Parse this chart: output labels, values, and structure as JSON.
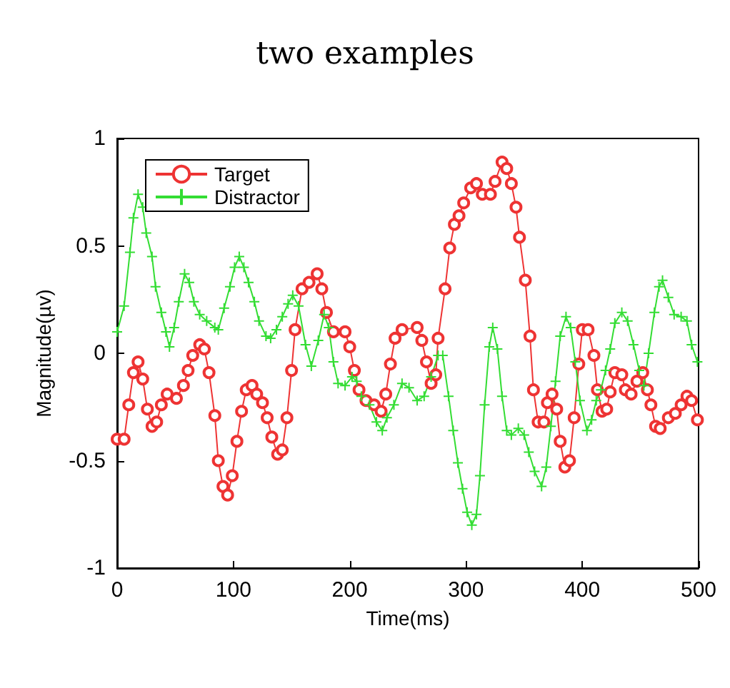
{
  "chart_data": {
    "type": "line",
    "title": "two examples",
    "xlabel": "Time(ms)",
    "ylabel": "Magnitude(µv)",
    "xlim": [
      0,
      500
    ],
    "xticks": [
      0,
      100,
      200,
      300,
      400,
      500
    ],
    "ylim": [
      -1,
      1
    ],
    "yticks": [
      -1,
      -0.5,
      0,
      0.5,
      1
    ],
    "legend": "top left",
    "series": [
      {
        "name": "Target",
        "color": "#ee3333",
        "marker": "circle",
        "x": [
          0,
          6,
          10,
          14,
          18,
          22,
          26,
          30,
          34,
          38,
          43,
          51,
          57,
          61,
          65,
          71,
          75,
          79,
          84,
          87,
          91,
          95,
          99,
          103,
          107,
          111,
          116,
          120,
          125,
          129,
          133,
          138,
          142,
          146,
          150,
          153,
          159,
          165,
          172,
          176,
          180,
          186,
          196,
          200,
          204,
          208,
          214,
          221,
          227,
          231,
          235,
          239,
          245,
          258,
          262,
          266,
          270,
          274,
          276,
          282,
          286,
          290,
          294,
          298,
          304,
          309,
          314,
          321,
          325,
          331,
          335,
          339,
          343,
          346,
          351,
          355,
          358,
          362,
          367,
          370,
          374,
          378,
          381,
          385,
          389,
          393,
          397,
          400,
          405,
          410,
          413,
          417,
          421,
          424,
          428,
          434,
          437,
          442,
          447,
          452,
          456,
          459,
          463,
          467,
          474,
          480,
          485,
          490,
          494,
          499
        ],
        "values": [
          -0.4,
          -0.4,
          -0.24,
          -0.09,
          -0.04,
          -0.12,
          -0.26,
          -0.34,
          -0.32,
          -0.24,
          -0.19,
          -0.21,
          -0.15,
          -0.08,
          -0.01,
          0.04,
          0.02,
          -0.09,
          -0.29,
          -0.5,
          -0.62,
          -0.66,
          -0.57,
          -0.41,
          -0.27,
          -0.17,
          -0.15,
          -0.19,
          -0.23,
          -0.3,
          -0.39,
          -0.47,
          -0.45,
          -0.3,
          -0.08,
          0.11,
          0.3,
          0.33,
          0.37,
          0.3,
          0.19,
          0.1,
          0.1,
          0.03,
          -0.08,
          -0.17,
          -0.22,
          -0.24,
          -0.27,
          -0.19,
          -0.05,
          0.07,
          0.11,
          0.12,
          0.06,
          -0.04,
          -0.14,
          -0.1,
          0.07,
          0.3,
          0.49,
          0.6,
          0.64,
          0.7,
          0.77,
          0.79,
          0.74,
          0.74,
          0.8,
          0.89,
          0.86,
          0.79,
          0.68,
          0.54,
          0.34,
          0.08,
          -0.17,
          -0.32,
          -0.32,
          -0.23,
          -0.19,
          -0.26,
          -0.41,
          -0.53,
          -0.5,
          -0.3,
          -0.05,
          0.11,
          0.11,
          -0.01,
          -0.17,
          -0.27,
          -0.26,
          -0.18,
          -0.09,
          -0.1,
          -0.17,
          -0.19,
          -0.13,
          -0.09,
          -0.17,
          -0.24,
          -0.34,
          -0.35,
          -0.3,
          -0.28,
          -0.24,
          -0.2,
          -0.22,
          -0.31
        ]
      },
      {
        "name": "Distractor",
        "color": "#33dd33",
        "marker": "cross",
        "x": [
          0,
          6,
          11,
          14,
          18,
          22,
          25,
          30,
          33,
          38,
          42,
          45,
          49,
          53,
          58,
          62,
          66,
          71,
          77,
          84,
          87,
          92,
          97,
          101,
          105,
          109,
          113,
          118,
          122,
          128,
          132,
          137,
          142,
          147,
          151,
          156,
          162,
          167,
          173,
          178,
          182,
          186,
          190,
          196,
          202,
          206,
          210,
          217,
          223,
          228,
          232,
          238,
          245,
          251,
          258,
          264,
          270,
          276,
          280,
          285,
          289,
          293,
          297,
          301,
          305,
          309,
          312,
          316,
          320,
          323,
          327,
          331,
          335,
          339,
          345,
          350,
          354,
          359,
          365,
          369,
          373,
          377,
          381,
          386,
          390,
          394,
          398,
          404,
          408,
          412,
          416,
          420,
          424,
          428,
          434,
          439,
          444,
          449,
          453,
          457,
          462,
          466,
          469,
          474,
          479,
          485,
          490,
          494,
          499
        ],
        "values": [
          0.1,
          0.22,
          0.47,
          0.63,
          0.74,
          0.68,
          0.56,
          0.45,
          0.31,
          0.19,
          0.1,
          0.03,
          0.12,
          0.24,
          0.37,
          0.33,
          0.24,
          0.18,
          0.15,
          0.12,
          0.11,
          0.21,
          0.31,
          0.4,
          0.45,
          0.4,
          0.33,
          0.24,
          0.15,
          0.08,
          0.07,
          0.11,
          0.17,
          0.23,
          0.27,
          0.22,
          0.04,
          -0.06,
          0.06,
          0.18,
          0.12,
          -0.04,
          -0.14,
          -0.15,
          -0.11,
          -0.13,
          -0.2,
          -0.24,
          -0.32,
          -0.36,
          -0.3,
          -0.24,
          -0.14,
          -0.16,
          -0.22,
          -0.2,
          -0.11,
          -0.01,
          -0.01,
          -0.2,
          -0.36,
          -0.51,
          -0.63,
          -0.74,
          -0.8,
          -0.75,
          -0.57,
          -0.24,
          0.03,
          0.12,
          0.02,
          -0.2,
          -0.36,
          -0.38,
          -0.35,
          -0.38,
          -0.46,
          -0.55,
          -0.62,
          -0.53,
          -0.34,
          -0.13,
          0.08,
          0.17,
          0.12,
          -0.04,
          -0.22,
          -0.36,
          -0.31,
          -0.22,
          -0.17,
          -0.08,
          0.02,
          0.14,
          0.19,
          0.15,
          0.04,
          -0.08,
          -0.15,
          0,
          0.19,
          0.31,
          0.34,
          0.26,
          0.18,
          0.17,
          0.15,
          0.04,
          -0.04
        ]
      }
    ]
  }
}
